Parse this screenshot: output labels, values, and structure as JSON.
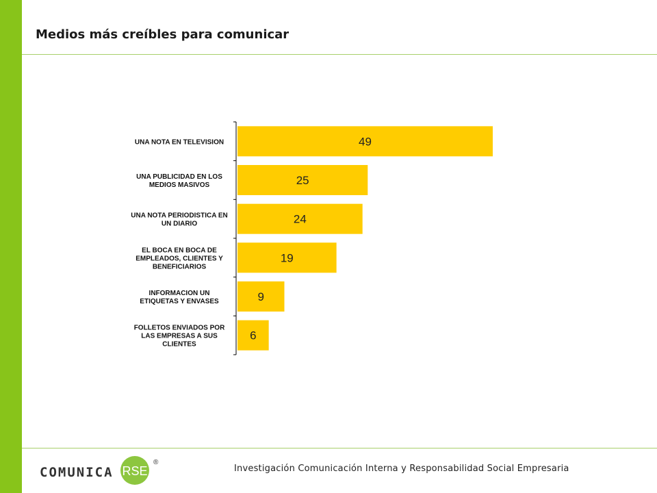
{
  "header": {
    "title": "Medios más creíbles para comunicar"
  },
  "chart_data": {
    "type": "bar",
    "orientation": "horizontal",
    "categories": [
      [
        "UNA NOTA EN TELEVISION"
      ],
      [
        "UNA PUBLICIDAD EN LOS",
        "MEDIOS  MASIVOS"
      ],
      [
        "UNA NOTA PERIODISTICA EN",
        "UN DIARIO"
      ],
      [
        "EL BOCA EN BOCA DE",
        "EMPLEADOS, CLIENTES Y",
        "BENEFICIARIOS"
      ],
      [
        "INFORMACION UN",
        "ETIQUETAS Y ENVASES"
      ],
      [
        "FOLLETOS ENVIADOS POR",
        "LAS EMPRESAS A SUS",
        "CLIENTES"
      ]
    ],
    "values": [
      49,
      25,
      24,
      19,
      9,
      6
    ],
    "data_labels": [
      "49",
      "25",
      "24",
      "19",
      "9",
      "6"
    ],
    "bar_color": "#ffcc00",
    "grid": false,
    "legend": "none"
  },
  "footer": {
    "logo_text": "COMUNICA",
    "logo_badge": "RSE",
    "logo_mark": "®",
    "text": "Investigación  Comunicación  Interna  y Responsabilidad  Social  Empresaria"
  },
  "colors": {
    "accent": "#88c41a",
    "rule": "#a8cf6a",
    "logo_circle": "#8dc63f"
  }
}
